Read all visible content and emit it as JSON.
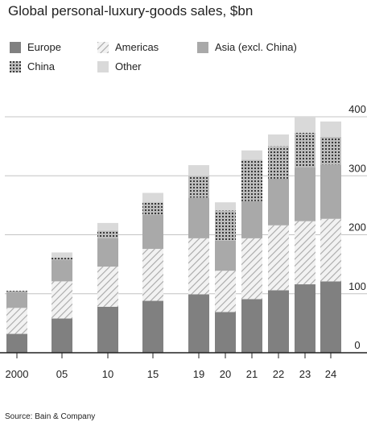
{
  "chart_data": {
    "type": "bar",
    "stacked": true,
    "title": "Global personal-luxury-goods sales, $bn",
    "categories": [
      "2000",
      "05",
      "10",
      "15",
      "19",
      "20",
      "21",
      "22",
      "23",
      "24"
    ],
    "series": [
      {
        "name": "Europe",
        "values": [
          32,
          58,
          78,
          88,
          99,
          69,
          91,
          106,
          116,
          121
        ],
        "pattern": "solid",
        "color": "#808080"
      },
      {
        "name": "Americas",
        "values": [
          44,
          63,
          68,
          88,
          95,
          70,
          103,
          110,
          107,
          106
        ],
        "pattern": "hatch",
        "color": "#d6d6d6"
      },
      {
        "name": "Asia (excl. China)",
        "values": [
          27,
          36,
          48,
          58,
          69,
          51,
          63,
          79,
          91,
          92
        ],
        "pattern": "solid",
        "color": "#a9a9a9"
      },
      {
        "name": "China",
        "values": [
          2,
          4,
          13,
          21,
          37,
          51,
          70,
          55,
          59,
          47
        ],
        "pattern": "dots",
        "color": "#888888"
      },
      {
        "name": "Other",
        "values": [
          0,
          9,
          13,
          16,
          18,
          14,
          16,
          20,
          27,
          26
        ],
        "pattern": "solid",
        "color": "#d9d9d9"
      }
    ],
    "ylim": [
      0,
      400
    ],
    "yticks": [
      0,
      100,
      200,
      300,
      400
    ],
    "yaxis_side": "right",
    "grid": true,
    "legend_placement": "top-left"
  },
  "source": "Source: Bain & Company"
}
